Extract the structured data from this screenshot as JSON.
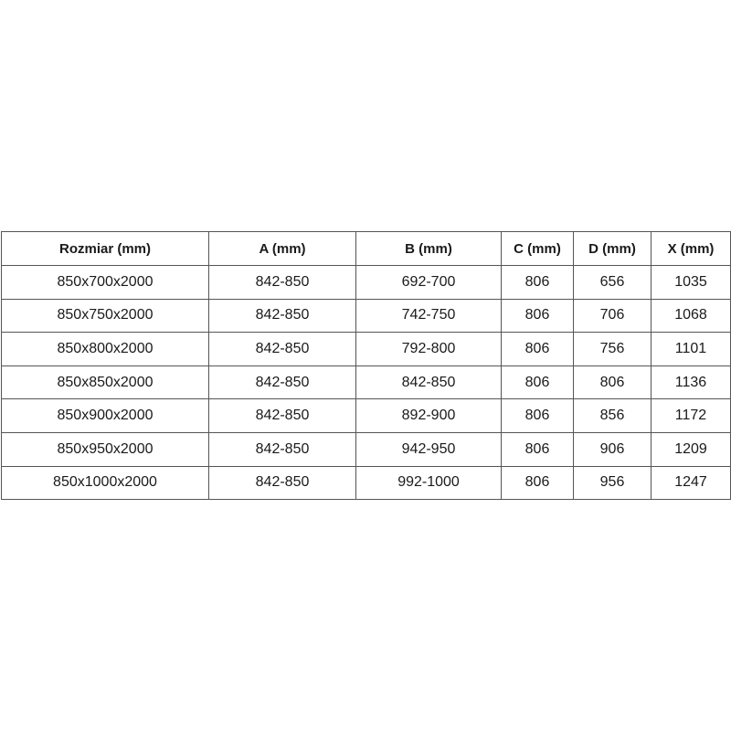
{
  "table": {
    "headers": [
      "Rozmiar (mm)",
      "A (mm)",
      "B (mm)",
      "C (mm)",
      "D (mm)",
      "X (mm)"
    ],
    "rows": [
      [
        "850x700x2000",
        "842-850",
        "692-700",
        "806",
        "656",
        "1035"
      ],
      [
        "850x750x2000",
        "842-850",
        "742-750",
        "806",
        "706",
        "1068"
      ],
      [
        "850x800x2000",
        "842-850",
        "792-800",
        "806",
        "756",
        "1101"
      ],
      [
        "850x850x2000",
        "842-850",
        "842-850",
        "806",
        "806",
        "1136"
      ],
      [
        "850x900x2000",
        "842-850",
        "892-900",
        "806",
        "856",
        "1172"
      ],
      [
        "850x950x2000",
        "842-850",
        "942-950",
        "806",
        "906",
        "1209"
      ],
      [
        "850x1000x2000",
        "842-850",
        "992-1000",
        "806",
        "956",
        "1247"
      ]
    ]
  }
}
